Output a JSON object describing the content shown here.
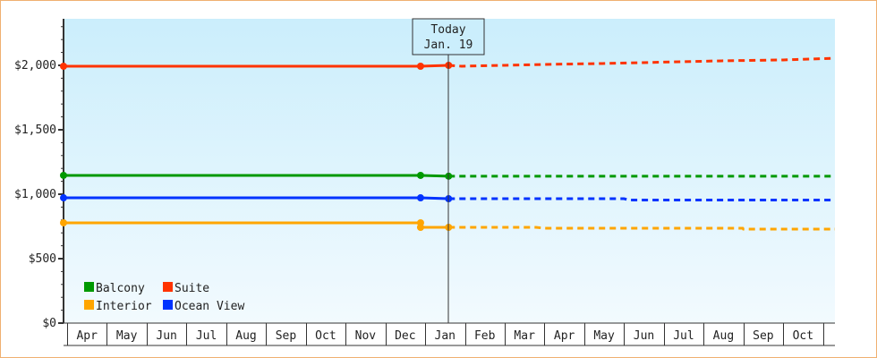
{
  "chart_data": {
    "type": "line",
    "title": "",
    "xlabel": "",
    "ylabel": "",
    "ylim": [
      0,
      2361
    ],
    "y_ticks": [
      "$0",
      "$500",
      "$1,000",
      "$1,500",
      "$2,000"
    ],
    "y_tick_values": [
      0,
      500,
      1000,
      1500,
      2000
    ],
    "x_ticks": [
      "Apr",
      "May",
      "Jun",
      "Jul",
      "Aug",
      "Sep",
      "Oct",
      "Nov",
      "Dec",
      "Jan",
      "Feb",
      "Mar",
      "Apr",
      "May",
      "Jun",
      "Jul",
      "Aug",
      "Sep",
      "Oct"
    ],
    "today": {
      "label": "Today",
      "date_label": "Jan. 19",
      "date": "01-19"
    },
    "legend_position": "bottom-left",
    "series": [
      {
        "name": "Balcony",
        "color": "#009900",
        "actual": [
          [
            "03-29",
            1146
          ],
          [
            "12-28",
            1146
          ],
          [
            "01-19",
            1140
          ]
        ],
        "forecast": [
          [
            "01-19",
            1140
          ],
          [
            "11-12",
            1140
          ]
        ]
      },
      {
        "name": "Suite",
        "color": "#ff3300",
        "actual": [
          [
            "03-29",
            1993
          ],
          [
            "12-28",
            1993
          ],
          [
            "01-19",
            2000
          ]
        ],
        "forecast": [
          [
            "01-19",
            2000
          ],
          [
            "01-29",
            1993
          ],
          [
            "02-10",
            1996
          ],
          [
            "03-01",
            2000
          ],
          [
            "04-01",
            2007
          ],
          [
            "05-15",
            2014
          ],
          [
            "06-15",
            2021
          ],
          [
            "07-15",
            2028
          ],
          [
            "08-15",
            2035
          ],
          [
            "10-01",
            2042
          ],
          [
            "11-12",
            2055
          ]
        ]
      },
      {
        "name": "Interior",
        "color": "#ffa500",
        "actual": [
          [
            "03-29",
            778
          ],
          [
            "12-28",
            778
          ],
          [
            "12-28",
            743
          ],
          [
            "01-19",
            743
          ]
        ],
        "forecast": [
          [
            "01-19",
            743
          ],
          [
            "03-25",
            743
          ],
          [
            "04-01",
            736
          ],
          [
            "08-31",
            736
          ],
          [
            "09-01",
            729
          ],
          [
            "11-12",
            729
          ]
        ]
      },
      {
        "name": "Ocean View",
        "color": "#0033ff",
        "actual": [
          [
            "03-29",
            972
          ],
          [
            "12-28",
            972
          ],
          [
            "01-19",
            965
          ]
        ],
        "forecast": [
          [
            "01-19",
            965
          ],
          [
            "06-01",
            965
          ],
          [
            "06-05",
            955
          ],
          [
            "11-12",
            955
          ]
        ]
      }
    ]
  }
}
